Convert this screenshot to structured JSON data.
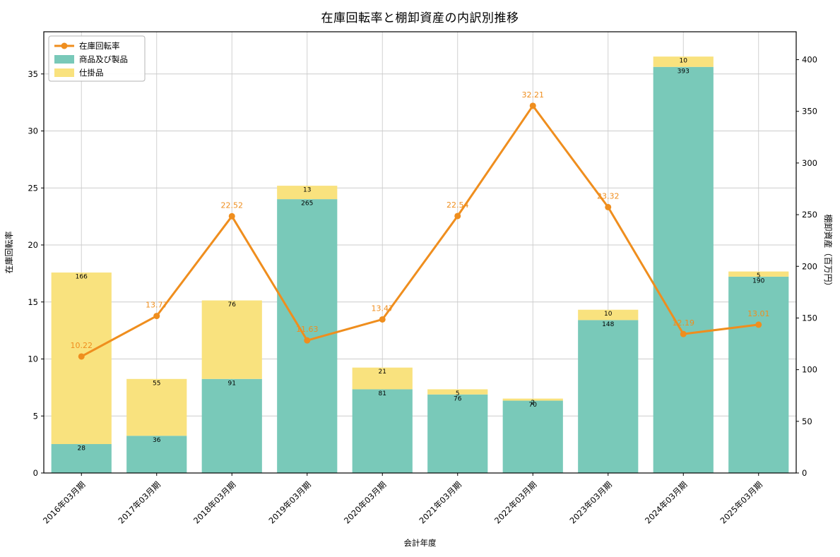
{
  "chart_data": {
    "type": "bar+line",
    "title": "在庫回転率と棚卸資産の内訳別推移",
    "xlabel": "会計年度",
    "ylabel_left": "在庫回転率",
    "ylabel_right": "棚卸資産（百万円）",
    "categories": [
      "2016年03月期",
      "2017年03月期",
      "2018年03月期",
      "2019年03月期",
      "2020年03月期",
      "2021年03月期",
      "2022年03月期",
      "2023年03月期",
      "2024年03月期",
      "2025年03月期"
    ],
    "series": [
      {
        "name": "在庫回転率",
        "type": "line",
        "axis": "left",
        "color": "#ef8e1e",
        "values": [
          10.22,
          13.77,
          22.52,
          11.63,
          13.47,
          22.54,
          32.21,
          23.32,
          12.19,
          13.01
        ]
      },
      {
        "name": "商品及び製品",
        "type": "bar",
        "axis": "right",
        "stack": "inventory",
        "color": "#79c9b9",
        "values": [
          28,
          36,
          91,
          265,
          81,
          76,
          70,
          148,
          393,
          190
        ]
      },
      {
        "name": "仕掛品",
        "type": "bar",
        "axis": "right",
        "stack": "inventory",
        "color": "#f9e27e",
        "values": [
          166,
          55,
          76,
          13,
          21,
          5,
          2,
          10,
          10,
          5
        ]
      }
    ],
    "axes": {
      "left_ticks": [
        0,
        5,
        10,
        15,
        20,
        25,
        30,
        35
      ],
      "right_ticks": [
        0,
        50,
        100,
        150,
        200,
        250,
        300,
        350,
        400
      ],
      "left_min": 0,
      "left_max": 38.7,
      "right_min": 0,
      "right_max": 427
    },
    "grid": true,
    "legend_position": "upper-left",
    "style": {
      "grid_color": "#cccccc",
      "axis_color": "#000000",
      "background": "#ffffff"
    }
  }
}
